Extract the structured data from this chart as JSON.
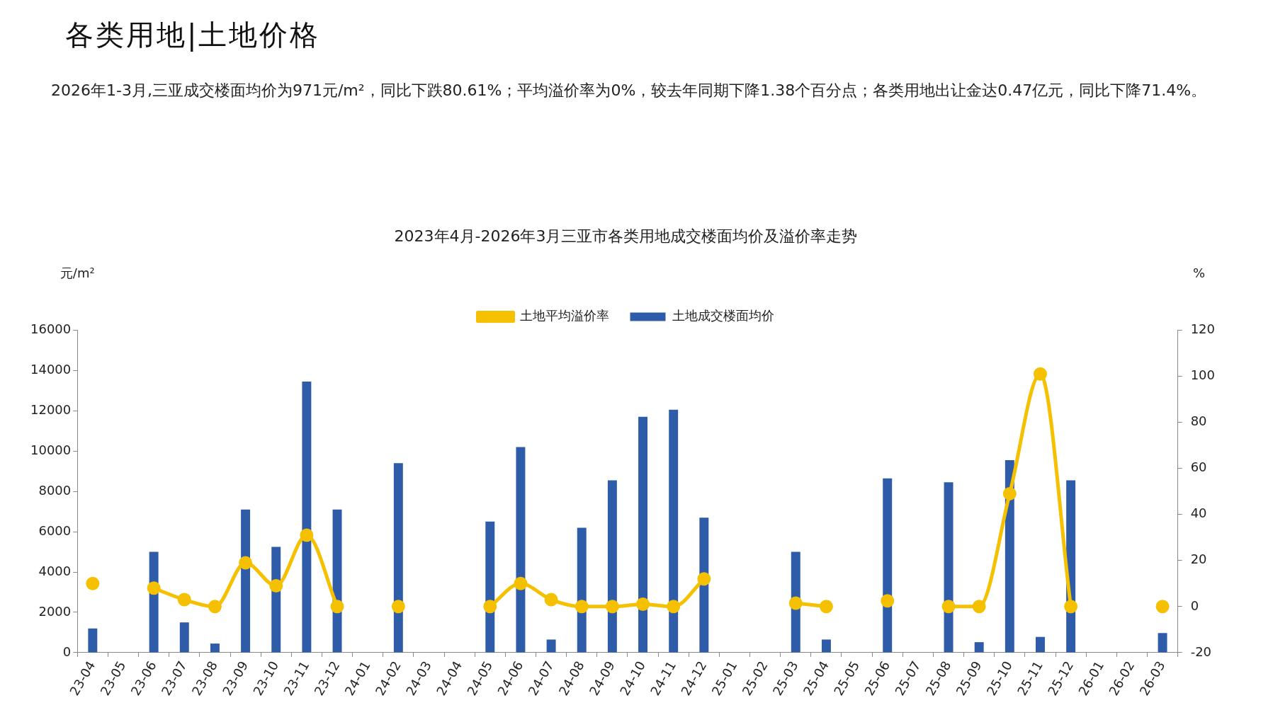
{
  "chart_data": {
    "type": "bar",
    "title": "2023年4月-2026年3月三亚市各类用地成交楼面均价及溢价率走势",
    "subtitle": "2026年1-3月,三亚成交楼面均价为971元/m²，同比下跌80.61%；平均溢价率为0%，较去年同期下降1.38个百分点；各类用地出让金达0.47亿元，同比下降71.4%。",
    "annotations": [
      "各类用地|土地价格"
    ],
    "categories": [
      "23-04",
      "23-05",
      "23-06",
      "23-07",
      "23-08",
      "23-09",
      "23-10",
      "23-11",
      "23-12",
      "24-01",
      "24-02",
      "24-03",
      "24-04",
      "24-05",
      "24-06",
      "24-07",
      "24-08",
      "24-09",
      "24-10",
      "24-11",
      "24-12",
      "25-01",
      "25-02",
      "25-03",
      "25-04",
      "25-05",
      "25-06",
      "25-07",
      "25-08",
      "25-09",
      "25-10",
      "25-11",
      "25-12",
      "26-01",
      "26-02",
      "26-03"
    ],
    "series": [
      {
        "name": "土地成交楼面均价",
        "color": "#2e5ca8",
        "values": [
          1200,
          null,
          5000,
          1500,
          450,
          7100,
          5250,
          13450,
          7100,
          null,
          9400,
          null,
          null,
          6500,
          10200,
          650,
          6200,
          8550,
          11700,
          12050,
          6700,
          null,
          null,
          5000,
          650,
          null,
          8650,
          null,
          8450,
          520,
          9550,
          780,
          8550,
          null,
          null,
          971
        ]
      },
      {
        "name": "土地平均溢价率",
        "color": "#f5c000",
        "type": "line",
        "axis": "y2",
        "values": [
          10,
          null,
          8,
          3,
          0,
          19,
          9,
          31,
          0,
          null,
          0,
          null,
          null,
          0,
          10,
          3,
          0,
          0,
          1,
          0,
          12,
          null,
          null,
          1.5,
          0,
          null,
          2.5,
          null,
          0,
          0,
          49,
          101,
          0,
          null,
          null,
          0
        ]
      }
    ],
    "ylabel": "元/m²",
    "y2label": "%",
    "ylim": [
      0,
      16000
    ],
    "yticks": [
      0,
      2000,
      4000,
      6000,
      8000,
      10000,
      12000,
      14000,
      16000
    ],
    "y2lim": [
      -20,
      120
    ],
    "y2ticks": [
      -20,
      0,
      20,
      40,
      60,
      80,
      100,
      120
    ],
    "legend": "top",
    "grid": false,
    "marker": "circle"
  }
}
